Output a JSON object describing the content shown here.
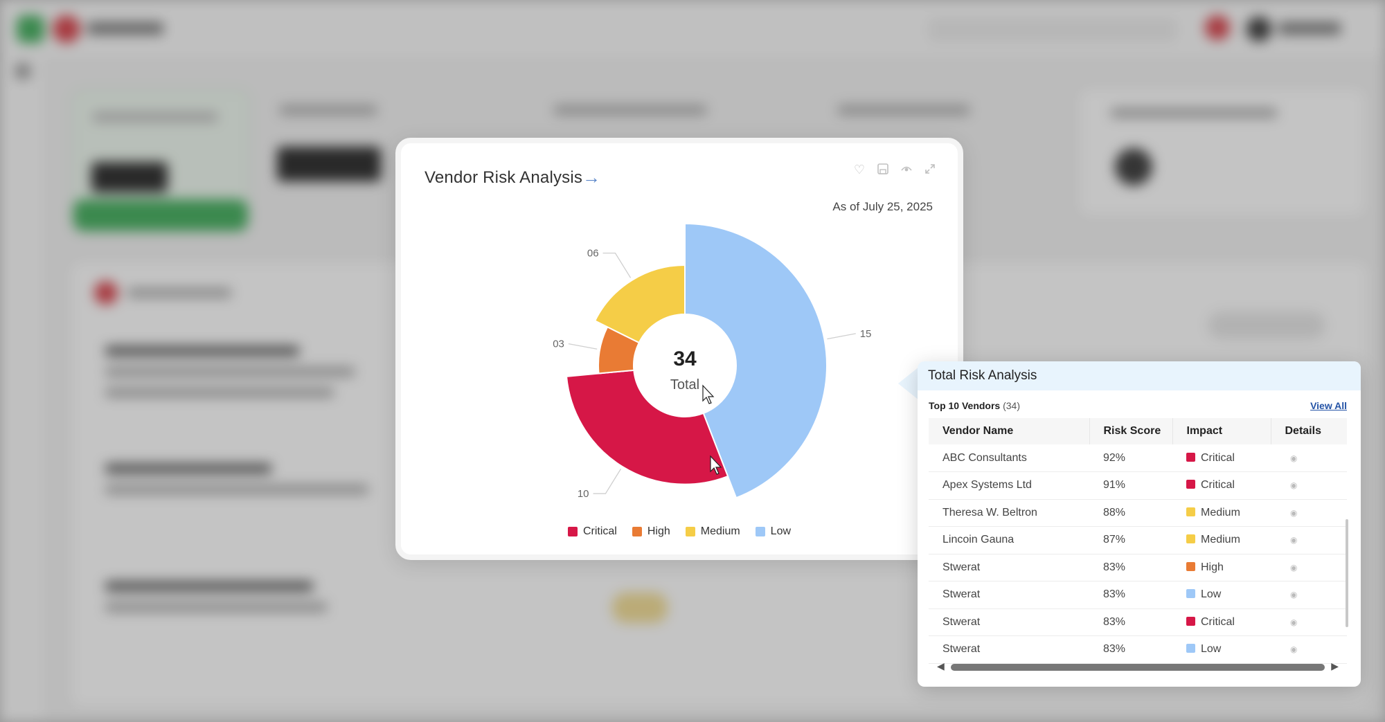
{
  "chart_card": {
    "title": "Vendor Risk Analysis",
    "arrow": "→",
    "date": "As of July 25, 2025",
    "icons": [
      "heart-icon",
      "save-icon",
      "eye-icon",
      "expand-icon"
    ]
  },
  "chart_data": {
    "type": "pie",
    "variant": "polar-area-donut",
    "center_value": "34",
    "center_label": "Total",
    "slices": [
      {
        "name": "Low",
        "value": 15,
        "label": "15",
        "color": "#9ec8f7"
      },
      {
        "name": "Critical",
        "value": 10,
        "label": "10",
        "color": "#d61747"
      },
      {
        "name": "High",
        "value": 3,
        "label": "03",
        "color": "#e97b34"
      },
      {
        "name": "Medium",
        "value": 6,
        "label": "06",
        "color": "#f5cd47"
      }
    ],
    "legend": [
      "Critical",
      "High",
      "Medium",
      "Low"
    ],
    "legend_placement": "bottom"
  },
  "popup": {
    "title": "Total Risk Analysis",
    "subtitle": "Top 10 Vendors",
    "count": "(34)",
    "view_all": "View All",
    "columns": [
      "Vendor Name",
      "Risk Score",
      "Impact",
      "Details"
    ],
    "rows": [
      {
        "vendor": "ABC Consultants",
        "score": "92%",
        "impact": "Critical",
        "color": "#d61747"
      },
      {
        "vendor": "Apex Systems Ltd",
        "score": "91%",
        "impact": "Critical",
        "color": "#d61747"
      },
      {
        "vendor": "Theresa W. Beltron",
        "score": "88%",
        "impact": "Medium",
        "color": "#f5cd47"
      },
      {
        "vendor": "Lincoin Gauna",
        "score": "87%",
        "impact": "Medium",
        "color": "#f5cd47"
      },
      {
        "vendor": "Stwerat",
        "score": "83%",
        "impact": "High",
        "color": "#e97b34"
      },
      {
        "vendor": "Stwerat",
        "score": "83%",
        "impact": "Low",
        "color": "#9ec8f7"
      },
      {
        "vendor": "Stwerat",
        "score": "83%",
        "impact": "Critical",
        "color": "#d61747"
      },
      {
        "vendor": "Stwerat",
        "score": "83%",
        "impact": "Low",
        "color": "#9ec8f7"
      }
    ]
  }
}
